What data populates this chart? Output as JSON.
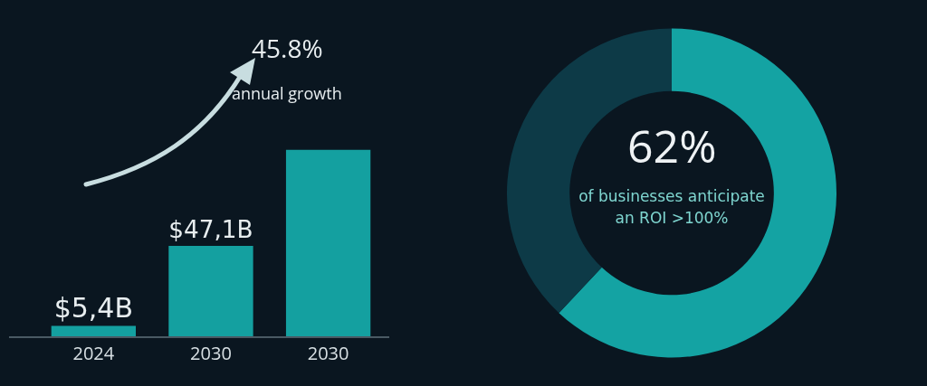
{
  "chart_data": [
    {
      "type": "bar",
      "categories": [
        "2024",
        "2030",
        "2030"
      ],
      "values": [
        5.4,
        47.1,
        97
      ],
      "value_labels": [
        "$5,4B",
        "$47,1B",
        null
      ],
      "color": "#14a0a0",
      "annotations": [
        "45.8%",
        "annual growth"
      ],
      "legend": false
    },
    {
      "type": "donut",
      "categories": [
        null,
        null
      ],
      "values": [
        62,
        38
      ],
      "colors": [
        "#14a3a3",
        "#0d3a47"
      ],
      "annotations": [
        "62%",
        "of businesses anticipate an ROI >100%"
      ],
      "legend": false
    }
  ]
}
